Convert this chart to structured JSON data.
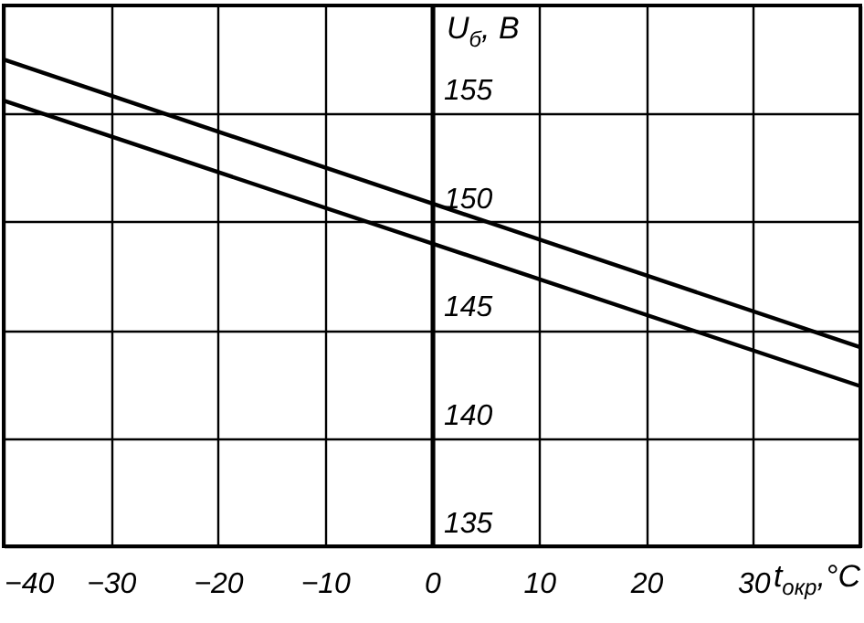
{
  "chart_data": {
    "type": "line",
    "xlabel": "t$_{окр}$,°C",
    "ylabel": "U$_{б}$, В",
    "x": [
      -40,
      40
    ],
    "series": [
      {
        "color": "#000000",
        "values": [
          157.5,
          144.2
        ]
      },
      {
        "color": "#000000",
        "values": [
          155.6,
          142.4
        ]
      }
    ],
    "xlim": [
      -40,
      40
    ],
    "ylim": [
      135,
      160
    ],
    "xticks": [
      -40,
      -30,
      -20,
      -10,
      0,
      10,
      20,
      30,
      {
        "value": 40,
        "label": null
      }
    ],
    "yticks": [
      135,
      140,
      145,
      150,
      155
    ],
    "grid": true,
    "marker": "none",
    "line_style": "solid"
  }
}
